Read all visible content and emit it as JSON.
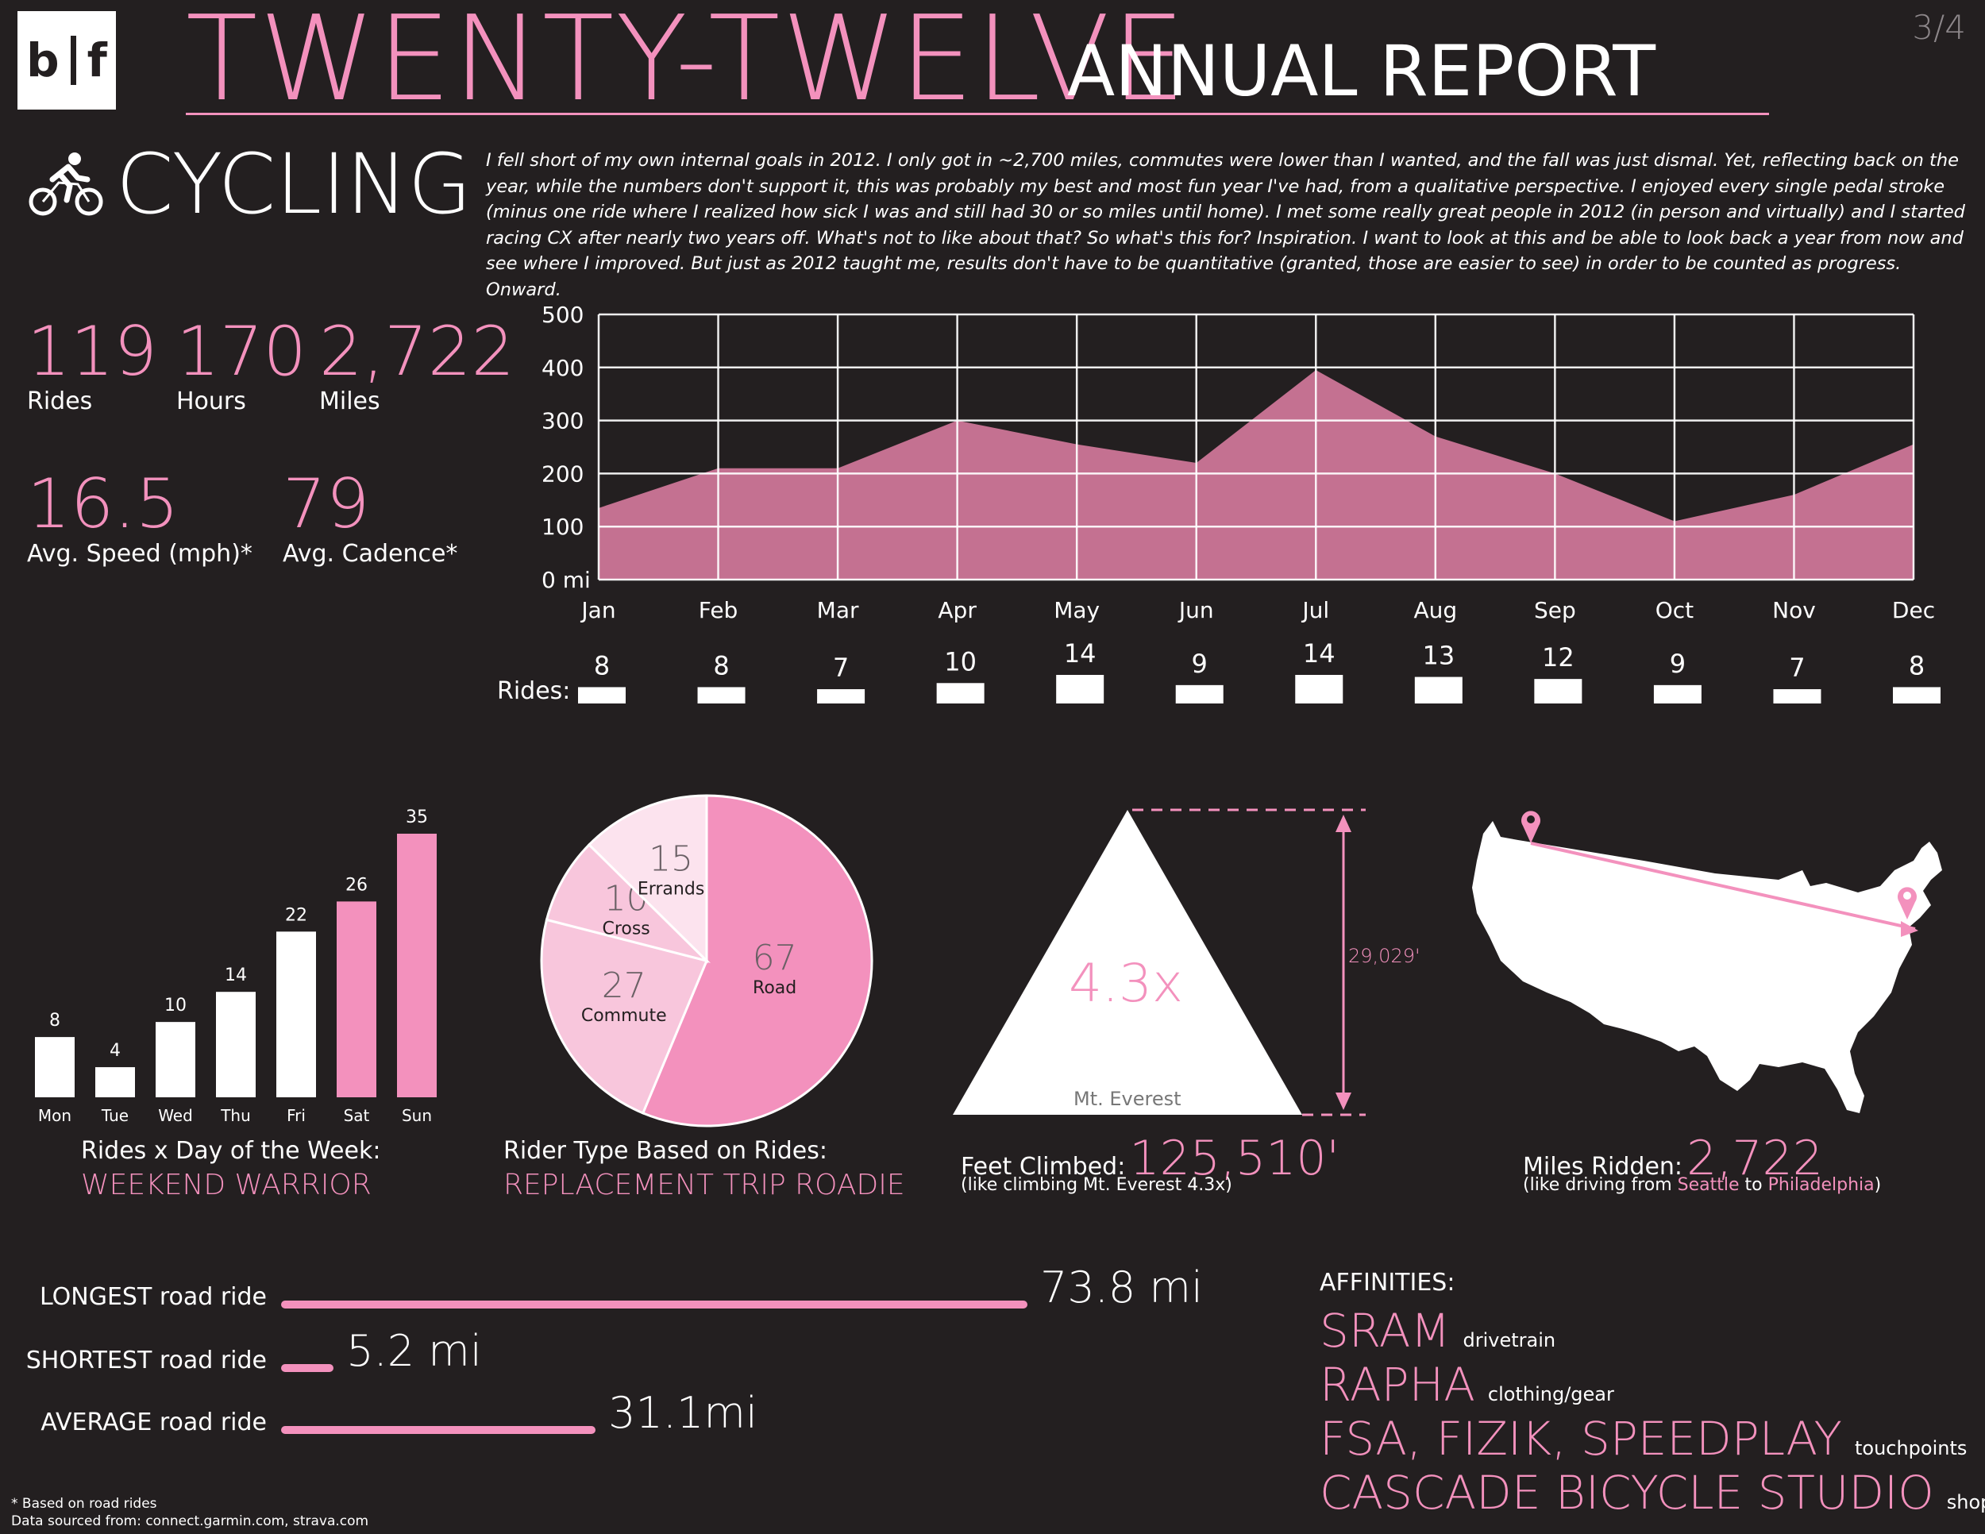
{
  "header": {
    "logo_left": "b",
    "logo_right": "f",
    "title": "TWENTY-TWELVE",
    "subtitle": "ANNUAL REPORT",
    "page_number": "3/4"
  },
  "section": {
    "icon": "bicycle-rider-icon",
    "title": "CYCLING",
    "intro": "I fell short of my own internal goals in 2012. I only got in ~2,700 miles, commutes were lower than I wanted, and the fall was just dismal.  Yet, reflecting back on the year, while the numbers don't support it, this was probably my best and most fun year I've had, from a qualitative perspective. I enjoyed every single pedal stroke (minus one ride where I realized how sick I was and still had 30 or so miles until home). I met some really great people in 2012 (in person and virtually) and I started racing CX after nearly two years off. What's not to like about that? So what's this for? Inspiration. I want to look at this and be able to look back a year from now and see where I improved. But just as 2012 taught me, results don't have to be quantitative (granted, those are easier to see) in order to be counted as progress. Onward."
  },
  "stats": [
    {
      "value": "119",
      "label": "Rides"
    },
    {
      "value": "170",
      "label": "Hours"
    },
    {
      "value": "2,722",
      "label": "Miles"
    },
    {
      "value": "16.5",
      "label": "Avg. Speed (mph)*"
    },
    {
      "value": "79",
      "label": "Avg. Cadence*"
    }
  ],
  "chart_data": [
    {
      "type": "area",
      "categories": [
        "Jan",
        "Feb",
        "Mar",
        "Apr",
        "May",
        "Jun",
        "Jul",
        "Aug",
        "Sep",
        "Oct",
        "Nov",
        "Dec"
      ],
      "values": [
        135,
        210,
        210,
        300,
        255,
        220,
        395,
        270,
        200,
        110,
        160,
        255
      ],
      "y_ticks": [
        "0 mi",
        "100",
        "200",
        "300",
        "400",
        "500"
      ],
      "ylim": [
        0,
        500
      ],
      "grid": true,
      "rides_label": "Rides:",
      "rides": [
        8,
        8,
        7,
        10,
        14,
        9,
        14,
        13,
        12,
        9,
        7,
        8
      ]
    },
    {
      "type": "bar",
      "categories": [
        "Mon",
        "Tue",
        "Wed",
        "Thu",
        "Fri",
        "Sat",
        "Sun"
      ],
      "values": [
        8,
        4,
        10,
        14,
        22,
        26,
        35
      ],
      "highlight": [
        "Sat",
        "Sun"
      ],
      "title": "Rides x Day of the Week:",
      "subtitle": "WEEKEND WARRIOR"
    },
    {
      "type": "pie",
      "slices": [
        {
          "label": "Road",
          "value": 67
        },
        {
          "label": "Commute",
          "value": 27
        },
        {
          "label": "Cross",
          "value": 10
        },
        {
          "label": "Errands",
          "value": 15
        }
      ],
      "title": "Rider Type Based on Rides:",
      "subtitle": "REPLACEMENT TRIP ROADIE"
    }
  ],
  "everest": {
    "multiplier": "4.3x",
    "mountain_label": "Mt. Everest",
    "height_label": "29,029'",
    "caption": "Feet Climbed:",
    "value": "125,510'",
    "note": "(like climbing Mt. Everest 4.3x)"
  },
  "map": {
    "caption": "Miles Ridden:",
    "value": "2,722",
    "note_prefix": "(like driving from ",
    "from": "Seattle",
    "note_mid": " to ",
    "to": "Philadelphia",
    "note_suffix": ")"
  },
  "road_rides": [
    {
      "label": "LONGEST road ride",
      "value": "73.8 mi",
      "miles": 73.8
    },
    {
      "label": "SHORTEST road ride",
      "value": "5.2 mi",
      "miles": 5.2
    },
    {
      "label": "AVERAGE road ride",
      "value": "31.1mi",
      "miles": 31.1
    }
  ],
  "affinities": {
    "title": "AFFINITIES:",
    "items": [
      {
        "brand": "SRAM",
        "type": "drivetrain"
      },
      {
        "brand": "RAPHA",
        "type": "clothing/gear"
      },
      {
        "brand": "FSA, FIZIK, SPEEDPLAY",
        "type": "touchpoints"
      },
      {
        "brand": "CASCADE BICYCLE STUDIO",
        "type": "shop"
      }
    ]
  },
  "footnotes": {
    "line1": "* Based on road rides",
    "line2": "Data sourced from: connect.garmin.com, strava.com"
  },
  "colors": {
    "background": "#231f20",
    "accent": "#f391bd",
    "area_fill": "#c47191",
    "pie_light": "#f8c6dc",
    "pie_lighter": "#fce3ee"
  }
}
